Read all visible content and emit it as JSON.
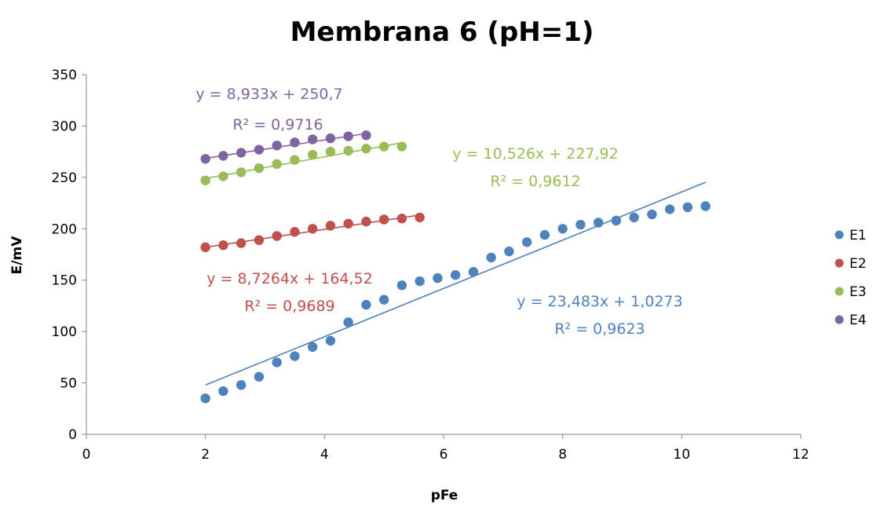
{
  "chart_data": {
    "type": "scatter",
    "title": "Membrana 6 (pH=1)",
    "xlabel": "pFe",
    "ylabel": "E/mV",
    "xlim": [
      0,
      12
    ],
    "ylim": [
      0,
      350
    ],
    "xticks": [
      0,
      2,
      4,
      6,
      8,
      10,
      12
    ],
    "yticks": [
      0,
      50,
      100,
      150,
      200,
      250,
      300,
      350
    ],
    "grid": false,
    "legend_position": "right",
    "series": [
      {
        "name": "E1",
        "color": "#4F81BD",
        "x": [
          2,
          2.3,
          2.6,
          2.9,
          3.2,
          3.5,
          3.8,
          4.1,
          4.4,
          4.7,
          5.0,
          5.3,
          5.6,
          5.9,
          6.2,
          6.5,
          6.8,
          7.1,
          7.4,
          7.7,
          8.0,
          8.3,
          8.6,
          8.9,
          9.2,
          9.5,
          9.8,
          10.1,
          10.4
        ],
        "y": [
          35,
          42,
          48,
          56,
          70,
          76,
          85,
          91,
          109,
          126,
          131,
          145,
          149,
          152,
          155,
          158,
          172,
          178,
          187,
          194,
          200,
          204,
          206,
          208,
          211,
          214,
          219,
          221,
          222
        ],
        "trendline": {
          "slope": 23.483,
          "intercept": 1.0273,
          "equation": "y = 23,483x + 1,0273",
          "r2": "R² = 0,9623"
        }
      },
      {
        "name": "E2",
        "color": "#C0504D",
        "x": [
          2,
          2.3,
          2.6,
          2.9,
          3.2,
          3.5,
          3.8,
          4.1,
          4.4,
          4.7,
          5.0,
          5.3,
          5.6
        ],
        "y": [
          182,
          184,
          186,
          189,
          193,
          197,
          200,
          203,
          205,
          207,
          209,
          210,
          211
        ],
        "trendline": {
          "slope": 8.7264,
          "intercept": 164.52,
          "equation": "y = 8,7264x + 164,52",
          "r2": "R² = 0,9689"
        }
      },
      {
        "name": "E3",
        "color": "#9BBB59",
        "x": [
          2,
          2.3,
          2.6,
          2.9,
          3.2,
          3.5,
          3.8,
          4.1,
          4.4,
          4.7,
          5.0,
          5.3
        ],
        "y": [
          247,
          251,
          255,
          259,
          263,
          267,
          272,
          275,
          276,
          278,
          280,
          280
        ],
        "trendline": {
          "slope": 10.526,
          "intercept": 227.92,
          "equation": "y = 10,526x + 227,92",
          "r2": "R² = 0,9612"
        }
      },
      {
        "name": "E4",
        "color": "#8064A2",
        "x": [
          2,
          2.3,
          2.6,
          2.9,
          3.2,
          3.5,
          3.8,
          4.1,
          4.4,
          4.7
        ],
        "y": [
          268,
          271,
          274,
          277,
          281,
          284,
          287,
          288,
          290,
          291
        ],
        "trendline": {
          "slope": 8.933,
          "intercept": 250.7,
          "equation": "y = 8,933x + 250,7",
          "r2": "R² = 0,9716"
        }
      }
    ]
  }
}
